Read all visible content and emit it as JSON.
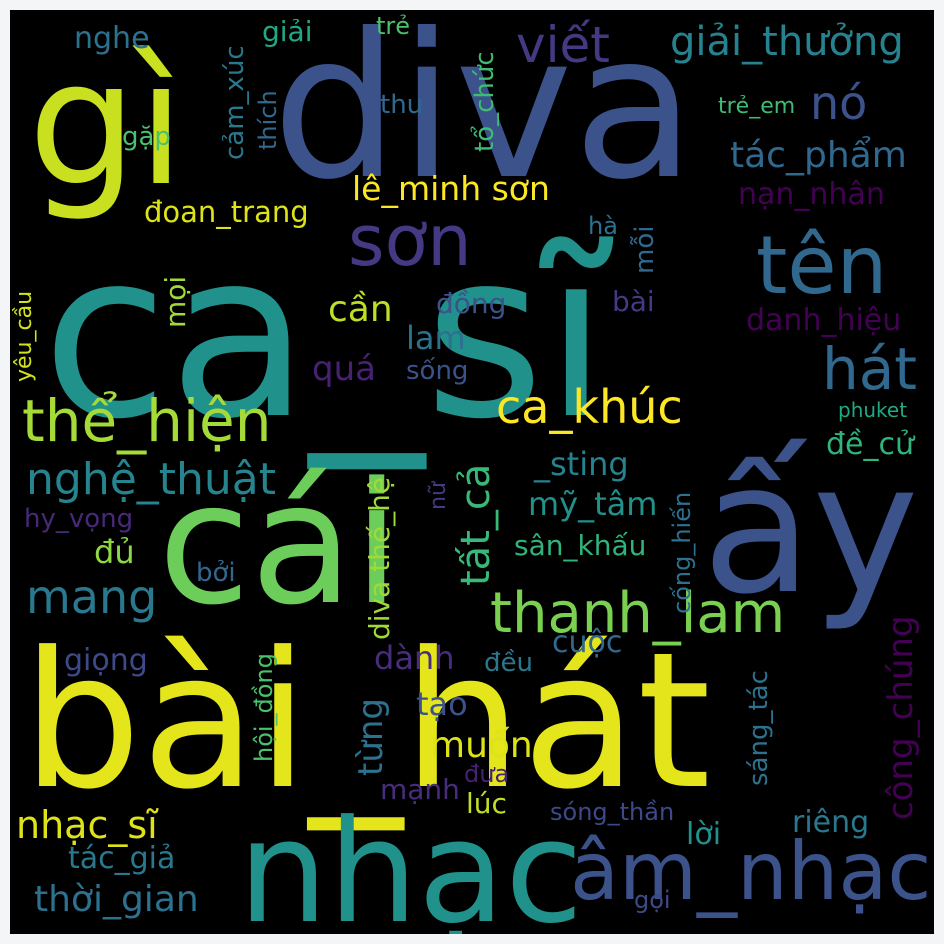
{
  "words": [
    {
      "text": "ca_sĩ",
      "color": "#21918c"
    },
    {
      "text": "bài_hát",
      "color": "#e4e51b"
    },
    {
      "text": "diva",
      "color": "#3b528b"
    },
    {
      "text": "gì",
      "color": "#c8e020"
    },
    {
      "text": "cái",
      "color": "#6ccd5a"
    },
    {
      "text": "ấy",
      "color": "#3b528b"
    },
    {
      "text": "nhạc",
      "color": "#21918c"
    },
    {
      "text": "âm_nhạc",
      "color": "#3b528b"
    },
    {
      "text": "sơn",
      "color": "#443983"
    },
    {
      "text": "tên",
      "color": "#31688e"
    },
    {
      "text": "viết",
      "color": "#443983"
    },
    {
      "text": "giải_thưởng",
      "color": "#26828e"
    },
    {
      "text": "nó",
      "color": "#3b528b"
    },
    {
      "text": "tác_phẩm",
      "color": "#31688e"
    },
    {
      "text": "lê_minh sơn",
      "color": "#fde725"
    },
    {
      "text": "đoan_trang",
      "color": "#dde318"
    },
    {
      "text": "hát",
      "color": "#31688e"
    },
    {
      "text": "thể_hiện",
      "color": "#a5db36"
    },
    {
      "text": "ca_khúc",
      "color": "#fde725"
    },
    {
      "text": "nghệ_thuật",
      "color": "#25848e"
    },
    {
      "text": "thanh_lam",
      "color": "#7ad151"
    },
    {
      "text": "mang",
      "color": "#2a788e"
    },
    {
      "text": "cần",
      "color": "#bddf26"
    },
    {
      "text": "nghe",
      "color": "#2c718e"
    },
    {
      "text": "giải",
      "color": "#22a884"
    },
    {
      "text": "trẻ",
      "color": "#4ac16d"
    },
    {
      "text": "cảm_xúc",
      "color": "#2a788e"
    },
    {
      "text": "thích",
      "color": "#31688e"
    },
    {
      "text": "thu",
      "color": "#31688e"
    },
    {
      "text": "tổ_chức",
      "color": "#3fbc73"
    },
    {
      "text": "gặp",
      "color": "#4ac16d"
    },
    {
      "text": "trẻ_em",
      "color": "#3fbc73"
    },
    {
      "text": "nạn_nhân",
      "color": "#440154"
    },
    {
      "text": "hà",
      "color": "#2c718e"
    },
    {
      "text": "mỗi",
      "color": "#31688e"
    },
    {
      "text": "mọi",
      "color": "#a0da39"
    },
    {
      "text": "yêu_cầu",
      "color": "#d2e21b"
    },
    {
      "text": "đồng",
      "color": "#3b528b"
    },
    {
      "text": "bài",
      "color": "#443983"
    },
    {
      "text": "danh_hiệu",
      "color": "#440154"
    },
    {
      "text": "lam",
      "color": "#2c718e"
    },
    {
      "text": "quá",
      "color": "#482173"
    },
    {
      "text": "sống",
      "color": "#3b528b"
    },
    {
      "text": "phuket",
      "color": "#22a884"
    },
    {
      "text": "tất_cả",
      "color": "#38b977"
    },
    {
      "text": "đề_cử",
      "color": "#2fb47c"
    },
    {
      "text": "diva thế_hệ",
      "color": "#a0da39"
    },
    {
      "text": "nữ",
      "color": "#443983"
    },
    {
      "text": "_sting",
      "color": "#26828e"
    },
    {
      "text": "cống_hiến",
      "color": "#2c718e"
    },
    {
      "text": "mỹ_tâm",
      "color": "#21918c"
    },
    {
      "text": "hy_vọng",
      "color": "#482878"
    },
    {
      "text": "đủ",
      "color": "#8fd744"
    },
    {
      "text": "sân_khấu",
      "color": "#2fb47c"
    },
    {
      "text": "bởi",
      "color": "#31688e"
    },
    {
      "text": "công_chúng",
      "color": "#440154"
    },
    {
      "text": "hội_đồng",
      "color": "#4ac16d"
    },
    {
      "text": "dành",
      "color": "#472d7b"
    },
    {
      "text": "đều",
      "color": "#2a788e"
    },
    {
      "text": "cuộc",
      "color": "#31688e"
    },
    {
      "text": "giọng",
      "color": "#3e4989"
    },
    {
      "text": "từng",
      "color": "#2c718e"
    },
    {
      "text": "tạo",
      "color": "#3b528b"
    },
    {
      "text": "sáng_tác",
      "color": "#2c718e"
    },
    {
      "text": "muốn",
      "color": "#dde318"
    },
    {
      "text": "mạnh",
      "color": "#472d7b"
    },
    {
      "text": "đưa",
      "color": "#482173"
    },
    {
      "text": "lúc",
      "color": "#c2df23"
    },
    {
      "text": "sóng_thần",
      "color": "#3e4989"
    },
    {
      "text": "nhạc_sĩ",
      "color": "#dde318"
    },
    {
      "text": "lời",
      "color": "#21918c"
    },
    {
      "text": "riêng",
      "color": "#2a788e"
    },
    {
      "text": "tác_giả",
      "color": "#2a788e"
    },
    {
      "text": "thời_gian",
      "color": "#2c718e"
    },
    {
      "text": "gọi",
      "color": "#3e4989"
    }
  ]
}
